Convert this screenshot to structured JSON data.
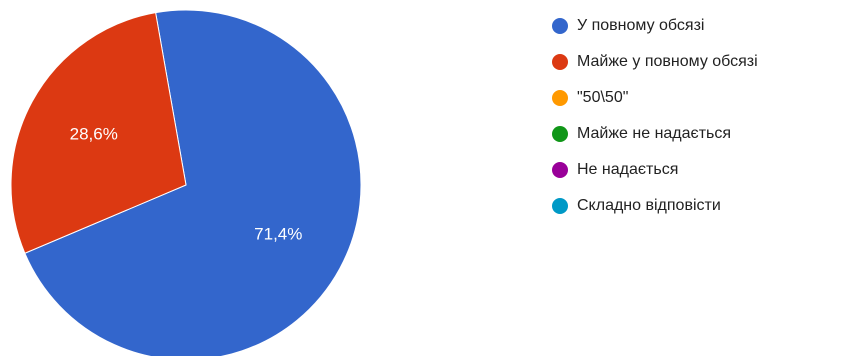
{
  "chart_data": {
    "type": "pie",
    "title": "",
    "categories": [
      "У повному обсязі",
      "Майже у повному обсязі",
      "\"50\\50\"",
      "Майже не надається",
      "Не надається",
      "Складно відповісти"
    ],
    "values": [
      71.4,
      28.6,
      0,
      0,
      0,
      0
    ],
    "value_labels": [
      "71,4%",
      "28,6%",
      "",
      "",
      "",
      ""
    ],
    "colors": [
      "#3366cc",
      "#dc3912",
      "#ff9900",
      "#109618",
      "#990099",
      "#0099c6"
    ],
    "legend_position": "right",
    "start_angle_deg": -10,
    "direction": "clockwise"
  }
}
